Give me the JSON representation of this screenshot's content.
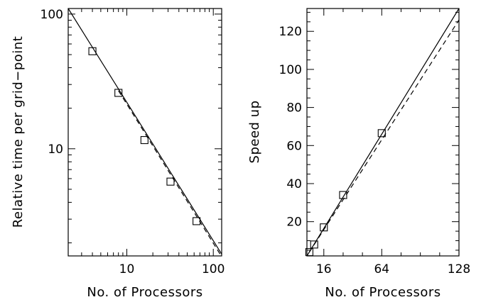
{
  "chart_data": [
    {
      "type": "line",
      "scale": "log-log",
      "xlabel": "No. of Processors",
      "ylabel": "Relative time per grid−point",
      "xlim": [
        2.1,
        125
      ],
      "ylim": [
        1.6,
        110
      ],
      "x_tick_labels": [
        "10",
        "100"
      ],
      "x_tick_values": [
        10,
        100
      ],
      "y_tick_labels": [
        "10",
        "100"
      ],
      "y_tick_values": [
        10,
        100
      ],
      "series": [
        {
          "style": "solid",
          "x": [
            2.1,
            125
          ],
          "y": [
            110,
            1.65
          ]
        },
        {
          "style": "dashed",
          "x": [
            8,
            125
          ],
          "y": [
            27,
            1.58
          ]
        },
        {
          "style": "markers",
          "marker": "open-square",
          "x": [
            4,
            8,
            16,
            32,
            64
          ],
          "y": [
            53,
            26,
            11.6,
            5.7,
            2.9
          ]
        }
      ]
    },
    {
      "type": "line",
      "scale": "linear",
      "xlabel": "No. of Processors",
      "ylabel": "Speed up",
      "xlim": [
        2,
        128
      ],
      "ylim": [
        2,
        132
      ],
      "x_tick_labels": [
        "16",
        "64",
        "128"
      ],
      "x_tick_values": [
        16,
        64,
        128
      ],
      "y_tick_labels": [
        "20",
        "40",
        "60",
        "80",
        "100",
        "120"
      ],
      "y_tick_values": [
        20,
        40,
        60,
        80,
        100,
        120
      ],
      "series": [
        {
          "style": "solid",
          "x": [
            2,
            128
          ],
          "y": [
            2,
            132
          ]
        },
        {
          "style": "dashed",
          "x": [
            4,
            128
          ],
          "y": [
            4,
            126
          ]
        },
        {
          "style": "markers",
          "marker": "open-square",
          "x": [
            4,
            8,
            16,
            32,
            64
          ],
          "y": [
            4,
            8,
            17,
            34,
            66.5
          ]
        }
      ]
    }
  ]
}
